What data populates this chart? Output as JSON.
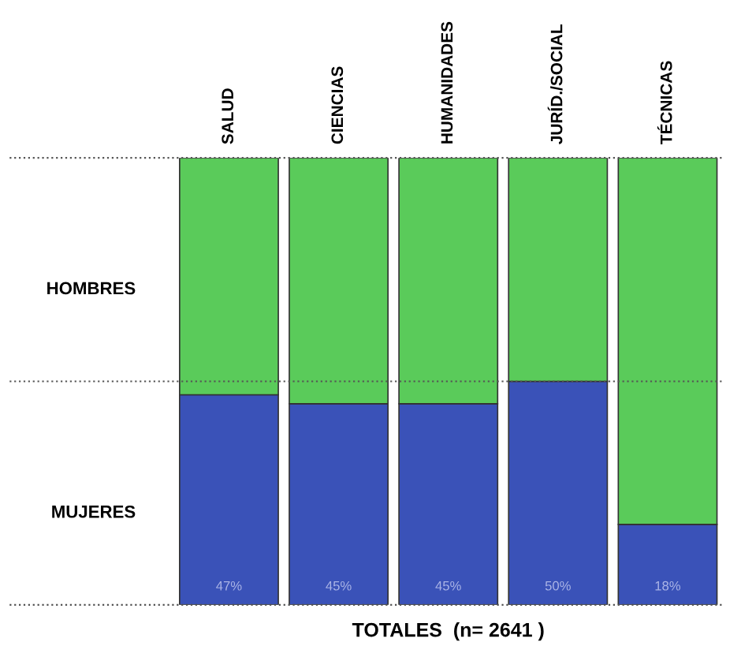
{
  "chart_data": {
    "type": "bar",
    "stacked": true,
    "ylim": [
      0,
      100
    ],
    "xlabel": "TOTALES  (n= 2641 )",
    "categories": [
      "SALUD",
      "CIENCIAS",
      "HUMANIDADES",
      "JURÍD./SOCIAL",
      "TÉCNICAS"
    ],
    "series": [
      {
        "name": "MUJERES",
        "color": "#3a52b8",
        "values": [
          47,
          45,
          45,
          50,
          18
        ],
        "value_labels": [
          "47%",
          "45%",
          "45%",
          "50%",
          "18%"
        ]
      },
      {
        "name": "HOMBRES",
        "color": "#5acb5a",
        "values": [
          53,
          55,
          55,
          50,
          82
        ]
      }
    ],
    "ref_lines": [
      {
        "axis": "y",
        "value": 0,
        "line_style": "dotted"
      },
      {
        "axis": "y",
        "value": 50,
        "line_style": "dotted"
      },
      {
        "axis": "y",
        "value": 100,
        "line_style": "dotted"
      }
    ],
    "legend": false
  }
}
